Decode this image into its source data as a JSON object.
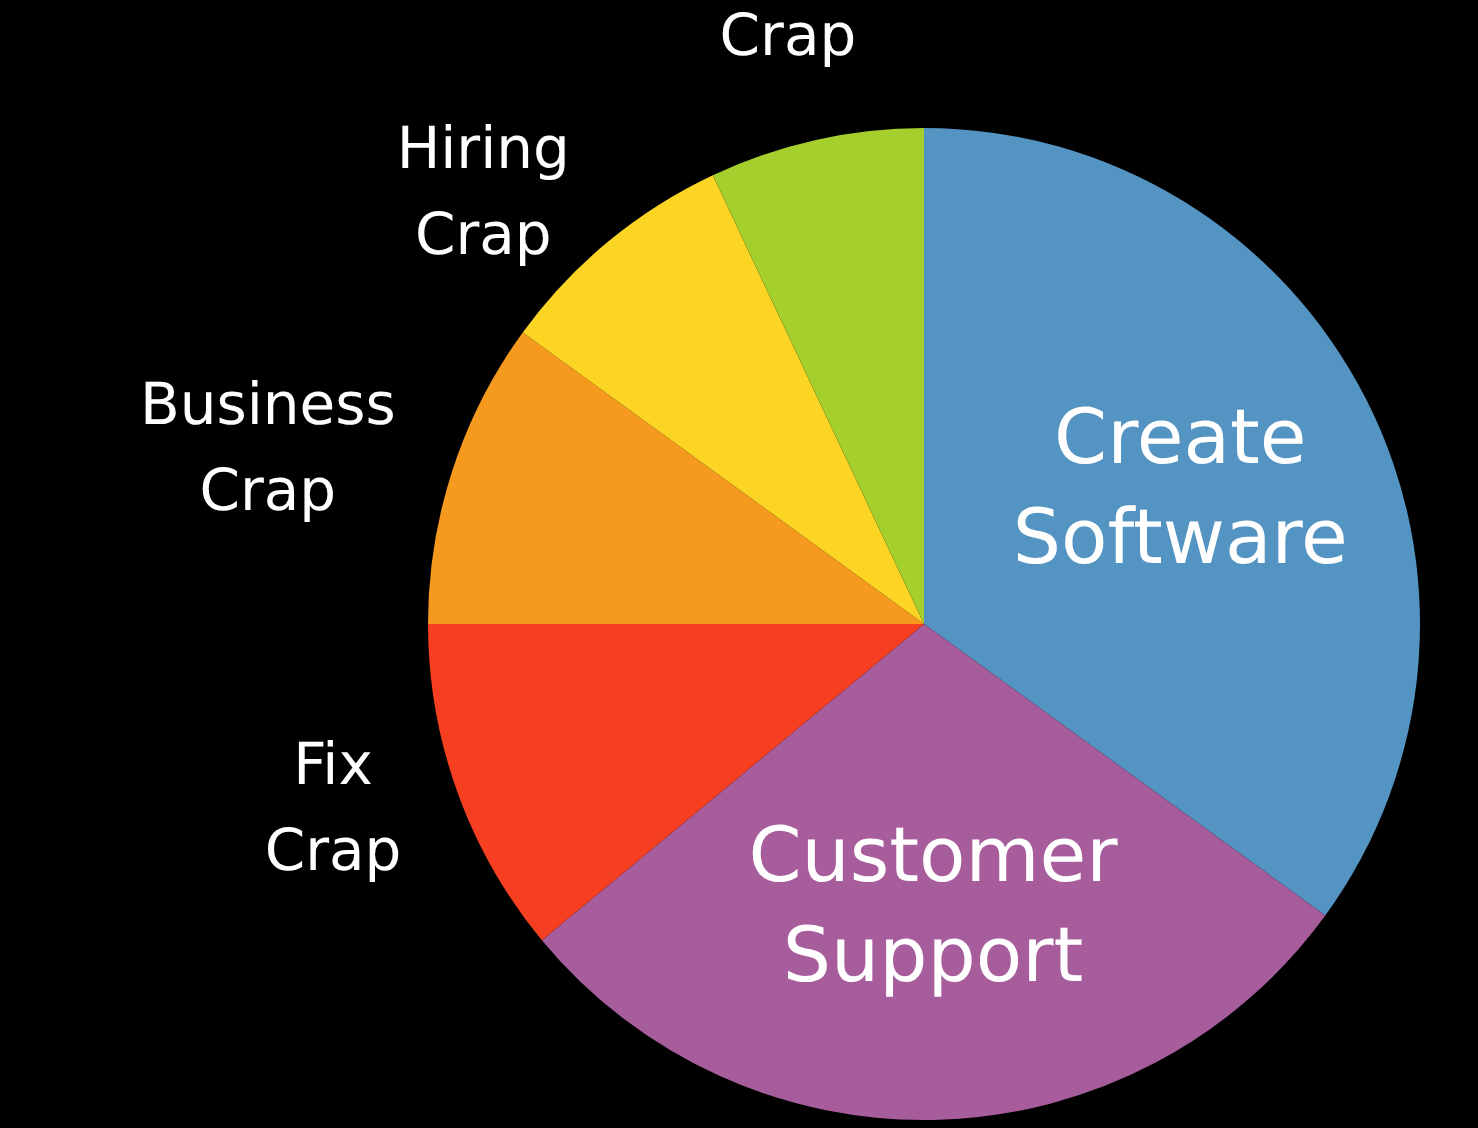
{
  "chart_data": {
    "type": "pie",
    "categories": [
      "Create Software",
      "Customer Support",
      "Fix Crap",
      "Business Crap",
      "Hiring Crap",
      "Crap"
    ],
    "values": [
      35,
      29,
      11,
      10,
      8,
      7
    ],
    "colors": [
      "#5494c3",
      "#a75c9b",
      "#f63f20",
      "#f6991f",
      "#fcd424",
      "#a5cf2d"
    ],
    "legend": false
  }
}
